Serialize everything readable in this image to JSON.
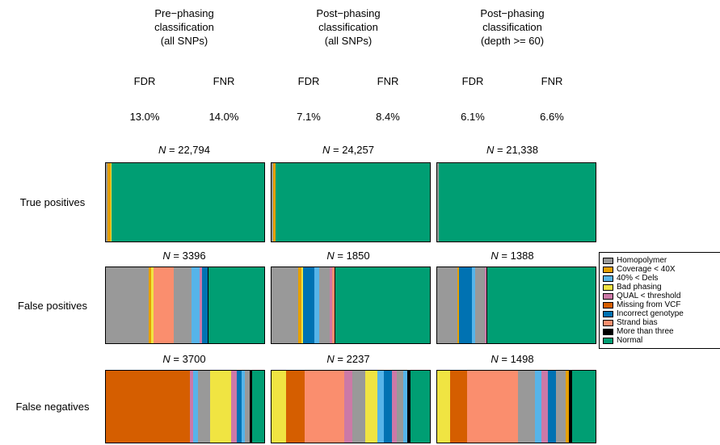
{
  "header": {
    "columns": [
      {
        "title": "Pre−phasing\nclassification\n(all SNPs)",
        "fdr_label": "FDR",
        "fnr_label": "FNR",
        "fdr_value": "13.0%",
        "fnr_value": "14.0%"
      },
      {
        "title": "Post−phasing\nclassification\n(all SNPs)",
        "fdr_label": "FDR",
        "fnr_label": "FNR",
        "fdr_value": "7.1%",
        "fnr_value": "8.4%"
      },
      {
        "title": "Post−phasing\nclassification\n(depth >= 60)",
        "fdr_label": "FDR",
        "fnr_label": "FNR",
        "fdr_value": "6.1%",
        "fnr_value": "6.6%"
      }
    ]
  },
  "chart_data": {
    "type": "bar",
    "orientation": "horizontal",
    "stacked": true,
    "normalized_to_100pct": true,
    "legend_position": "right",
    "categories": [
      {
        "label": "Homopolymer",
        "color": "#999999"
      },
      {
        "label": "Coverage < 40X",
        "color": "#E69F00"
      },
      {
        "label": "40% < Dels",
        "color": "#56B4E9"
      },
      {
        "label": "Bad phasing",
        "color": "#F0E442"
      },
      {
        "label": "QUAL < threshold",
        "color": "#CC79A7"
      },
      {
        "label": "Missing from VCF",
        "color": "#D55E00"
      },
      {
        "label": "Incorrect genotype",
        "color": "#0072B2"
      },
      {
        "label": "Strand bias",
        "color": "#FA8E6E"
      },
      {
        "label": "More than three",
        "color": "#000000"
      },
      {
        "label": "Normal",
        "color": "#009E73"
      }
    ],
    "rows": [
      {
        "label": "True positives",
        "bars": [
          {
            "column": "Pre−phasing classification (all SNPs)",
            "n": 22794,
            "n_label": "N = 22,794",
            "segments": [
              {
                "category": "Homopolymer",
                "pct": 1.2
              },
              {
                "category": "Coverage < 40X",
                "pct": 2.1
              },
              {
                "category": "Bad phasing",
                "pct": 0.4
              },
              {
                "category": "Normal",
                "pct": 96.3
              }
            ]
          },
          {
            "column": "Post−phasing classification (all SNPs)",
            "n": 24257,
            "n_label": "N = 24,257",
            "segments": [
              {
                "category": "Homopolymer",
                "pct": 0.9
              },
              {
                "category": "Coverage < 40X",
                "pct": 1.5
              },
              {
                "category": "Incorrect genotype",
                "pct": 0.4
              },
              {
                "category": "Normal",
                "pct": 97.2
              }
            ]
          },
          {
            "column": "Post−phasing classification (depth >= 60)",
            "n": 21338,
            "n_label": "N = 21,338",
            "segments": [
              {
                "category": "Homopolymer",
                "pct": 0.9
              },
              {
                "category": "Coverage < 40X",
                "pct": 0.2
              },
              {
                "category": "Normal",
                "pct": 98.9
              }
            ]
          }
        ]
      },
      {
        "label": "False positives",
        "bars": [
          {
            "column": "Pre−phasing classification (all SNPs)",
            "n": 3396,
            "n_label": "N = 3396",
            "segments": [
              {
                "category": "Homopolymer",
                "pct": 27
              },
              {
                "category": "Coverage < 40X",
                "pct": 1.5
              },
              {
                "category": "Bad phasing",
                "pct": 1.5
              },
              {
                "category": "Strand bias",
                "pct": 13
              },
              {
                "category": "Homopolymer",
                "pct": 11
              },
              {
                "category": "40% < Dels",
                "pct": 5
              },
              {
                "category": "QUAL < threshold",
                "pct": 1.5
              },
              {
                "category": "Incorrect genotype",
                "pct": 4
              },
              {
                "category": "More than three",
                "pct": 0.5
              },
              {
                "category": "Normal",
                "pct": 35
              }
            ]
          },
          {
            "column": "Post−phasing classification (all SNPs)",
            "n": 1850,
            "n_label": "N = 1850",
            "segments": [
              {
                "category": "Homopolymer",
                "pct": 17
              },
              {
                "category": "Coverage < 40X",
                "pct": 2
              },
              {
                "category": "Bad phasing",
                "pct": 1
              },
              {
                "category": "Incorrect genotype",
                "pct": 7
              },
              {
                "category": "40% < Dels",
                "pct": 3
              },
              {
                "category": "Homopolymer",
                "pct": 7
              },
              {
                "category": "QUAL < threshold",
                "pct": 1.5
              },
              {
                "category": "Strand bias",
                "pct": 1.5
              },
              {
                "category": "More than three",
                "pct": 0.5
              },
              {
                "category": "Normal",
                "pct": 59.5
              }
            ]
          },
          {
            "column": "Post−phasing classification (depth >= 60)",
            "n": 1388,
            "n_label": "N = 1388",
            "segments": [
              {
                "category": "Homopolymer",
                "pct": 13
              },
              {
                "category": "Coverage < 40X",
                "pct": 1
              },
              {
                "category": "Incorrect genotype",
                "pct": 8
              },
              {
                "category": "40% < Dels",
                "pct": 2
              },
              {
                "category": "Homopolymer",
                "pct": 6
              },
              {
                "category": "QUAL < threshold",
                "pct": 1
              },
              {
                "category": "More than three",
                "pct": 0.5
              },
              {
                "category": "Normal",
                "pct": 68.5
              }
            ]
          }
        ]
      },
      {
        "label": "False negatives",
        "bars": [
          {
            "column": "Pre−phasing classification (all SNPs)",
            "n": 3700,
            "n_label": "N = 3700",
            "segments": [
              {
                "category": "Missing from VCF",
                "pct": 53
              },
              {
                "category": "QUAL < threshold",
                "pct": 2
              },
              {
                "category": "40% < Dels",
                "pct": 3
              },
              {
                "category": "Homopolymer",
                "pct": 8
              },
              {
                "category": "Bad phasing",
                "pct": 13
              },
              {
                "category": "QUAL < threshold",
                "pct": 3.5
              },
              {
                "category": "Incorrect genotype",
                "pct": 3
              },
              {
                "category": "40% < Dels",
                "pct": 2.5
              },
              {
                "category": "Homopolymer",
                "pct": 3
              },
              {
                "category": "More than three",
                "pct": 1.5
              },
              {
                "category": "Normal",
                "pct": 7.5
              }
            ]
          },
          {
            "column": "Post−phasing classification (all SNPs)",
            "n": 2237,
            "n_label": "N = 2237",
            "segments": [
              {
                "category": "Bad phasing",
                "pct": 9
              },
              {
                "category": "Missing from VCF",
                "pct": 12
              },
              {
                "category": "Strand bias",
                "pct": 25
              },
              {
                "category": "QUAL < threshold",
                "pct": 5
              },
              {
                "category": "Homopolymer",
                "pct": 8
              },
              {
                "category": "Bad phasing",
                "pct": 8
              },
              {
                "category": "40% < Dels",
                "pct": 4
              },
              {
                "category": "Incorrect genotype",
                "pct": 5
              },
              {
                "category": "QUAL < threshold",
                "pct": 3
              },
              {
                "category": "Homopolymer",
                "pct": 4
              },
              {
                "category": "40% < Dels",
                "pct": 3
              },
              {
                "category": "More than three",
                "pct": 2
              },
              {
                "category": "Normal",
                "pct": 12
              }
            ]
          },
          {
            "column": "Post−phasing classification (depth >= 60)",
            "n": 1498,
            "n_label": "N = 1498",
            "segments": [
              {
                "category": "Bad phasing",
                "pct": 8
              },
              {
                "category": "Missing from VCF",
                "pct": 11
              },
              {
                "category": "Strand bias",
                "pct": 32
              },
              {
                "category": "Homopolymer",
                "pct": 11
              },
              {
                "category": "40% < Dels",
                "pct": 4
              },
              {
                "category": "QUAL < threshold",
                "pct": 4
              },
              {
                "category": "Incorrect genotype",
                "pct": 5
              },
              {
                "category": "Homopolymer",
                "pct": 6
              },
              {
                "category": "Coverage < 40X",
                "pct": 2
              },
              {
                "category": "More than three",
                "pct": 2
              },
              {
                "category": "Normal",
                "pct": 15
              }
            ]
          }
        ]
      }
    ]
  }
}
